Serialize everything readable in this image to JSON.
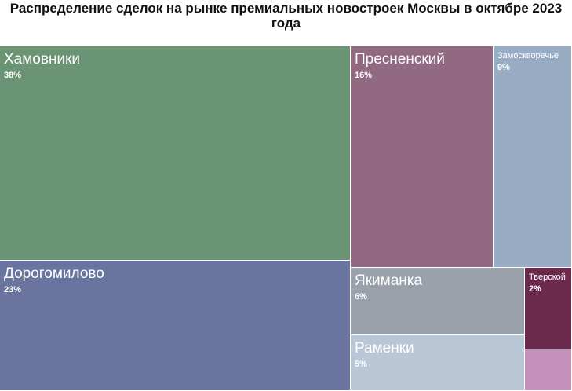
{
  "chart_data": {
    "type": "treemap",
    "title": "Распределение сделок на рынке премиальных новостроек Москвы в октябре 2023 года",
    "items": [
      {
        "name": "Хамовники",
        "label": "38%",
        "value": 38,
        "color": "#6b9475"
      },
      {
        "name": "Дорогомилово",
        "label": "23%",
        "value": 23,
        "color": "#69759f"
      },
      {
        "name": "Пресненский",
        "label": "16%",
        "value": 16,
        "color": "#916a82"
      },
      {
        "name": "Замоскворечье",
        "label": "9%",
        "value": 9,
        "color": "#98adc4"
      },
      {
        "name": "Якиманка",
        "label": "6%",
        "value": 6,
        "color": "#9aa1aa"
      },
      {
        "name": "Раменки",
        "label": "5%",
        "value": 5,
        "color": "#b9c6d6"
      },
      {
        "name": "Тверской",
        "label": "2%",
        "value": 2,
        "color": "#6b2a4b"
      },
      {
        "name": "",
        "label": "",
        "value": 1,
        "color": "#c48fba"
      }
    ]
  }
}
